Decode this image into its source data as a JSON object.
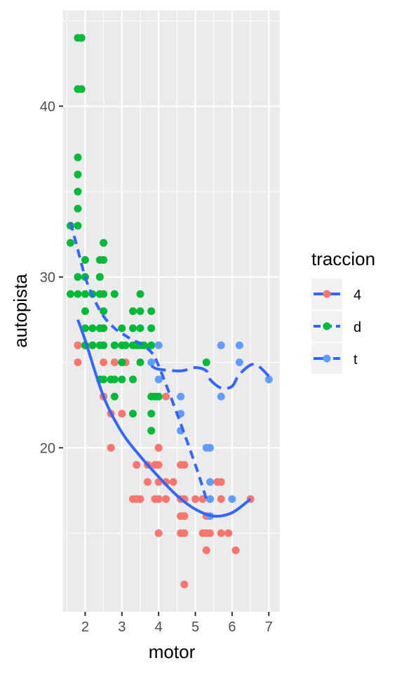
{
  "chart_data": {
    "type": "scatter",
    "xlabel": "motor",
    "ylabel": "autopista",
    "xlim": [
      1.4,
      7.3
    ],
    "ylim": [
      10.4,
      45.6
    ],
    "x_ticks": [
      2,
      3,
      4,
      5,
      6,
      7
    ],
    "y_ticks": [
      20,
      30,
      40
    ],
    "grid": true,
    "legend": {
      "title": "traccion",
      "position": "right"
    },
    "colors": {
      "panel": "#EBEBEB",
      "grid": "#FFFFFF",
      "smooth": "#3366FF",
      "axis_text": "#4D4D4D"
    },
    "series": [
      {
        "name": "4",
        "color": "#F8766D",
        "line_style": "solid",
        "points": [
          [
            1.8,
            26
          ],
          [
            1.8,
            25
          ],
          [
            2.0,
            26
          ],
          [
            2.0,
            26
          ],
          [
            2.2,
            26
          ],
          [
            2.4,
            27
          ],
          [
            2.5,
            27
          ],
          [
            2.5,
            25
          ],
          [
            2.5,
            24
          ],
          [
            2.5,
            23
          ],
          [
            2.7,
            22
          ],
          [
            2.7,
            20
          ],
          [
            2.7,
            20
          ],
          [
            2.8,
            25
          ],
          [
            3.0,
            22
          ],
          [
            3.1,
            25
          ],
          [
            3.3,
            17
          ],
          [
            3.4,
            19
          ],
          [
            3.4,
            17
          ],
          [
            3.5,
            17
          ],
          [
            3.7,
            19
          ],
          [
            3.7,
            18
          ],
          [
            3.9,
            17
          ],
          [
            3.9,
            19
          ],
          [
            4.0,
            20
          ],
          [
            4.0,
            20
          ],
          [
            4.0,
            19
          ],
          [
            4.0,
            18
          ],
          [
            4.0,
            17
          ],
          [
            4.0,
            15
          ],
          [
            4.2,
            23
          ],
          [
            4.2,
            18
          ],
          [
            4.2,
            17
          ],
          [
            4.4,
            18
          ],
          [
            4.6,
            16
          ],
          [
            4.6,
            17
          ],
          [
            4.6,
            19
          ],
          [
            4.6,
            15
          ],
          [
            4.7,
            19
          ],
          [
            4.7,
            16
          ],
          [
            4.7,
            15
          ],
          [
            4.7,
            17
          ],
          [
            4.7,
            12
          ],
          [
            5.0,
            17
          ],
          [
            5.2,
            17
          ],
          [
            5.2,
            15
          ],
          [
            5.3,
            16
          ],
          [
            5.3,
            15
          ],
          [
            5.3,
            14
          ],
          [
            5.4,
            17
          ],
          [
            5.4,
            15
          ],
          [
            5.7,
            18
          ],
          [
            5.7,
            17
          ],
          [
            5.7,
            15
          ],
          [
            5.9,
            15
          ],
          [
            6.1,
            14
          ],
          [
            6.5,
            17
          ],
          [
            5.6,
            18
          ]
        ]
      },
      {
        "name": "d",
        "color": "#00BA38",
        "line_style": "dashed",
        "points": [
          [
            1.6,
            33
          ],
          [
            1.6,
            32
          ],
          [
            1.6,
            29
          ],
          [
            1.8,
            44
          ],
          [
            1.8,
            41
          ],
          [
            1.8,
            37
          ],
          [
            1.8,
            36
          ],
          [
            1.8,
            35
          ],
          [
            1.8,
            34
          ],
          [
            1.8,
            33
          ],
          [
            1.8,
            30
          ],
          [
            1.8,
            29
          ],
          [
            1.9,
            44
          ],
          [
            1.9,
            41
          ],
          [
            2.0,
            31
          ],
          [
            2.0,
            30
          ],
          [
            2.0,
            29
          ],
          [
            2.0,
            28
          ],
          [
            2.0,
            27
          ],
          [
            2.0,
            26
          ],
          [
            2.2,
            29
          ],
          [
            2.2,
            27
          ],
          [
            2.2,
            26
          ],
          [
            2.4,
            31
          ],
          [
            2.4,
            30
          ],
          [
            2.4,
            29
          ],
          [
            2.4,
            27
          ],
          [
            2.4,
            26
          ],
          [
            2.4,
            24
          ],
          [
            2.5,
            32
          ],
          [
            2.5,
            31
          ],
          [
            2.5,
            29
          ],
          [
            2.5,
            28
          ],
          [
            2.5,
            27
          ],
          [
            2.5,
            26
          ],
          [
            2.5,
            24
          ],
          [
            2.7,
            24
          ],
          [
            2.8,
            29
          ],
          [
            2.8,
            26
          ],
          [
            2.8,
            24
          ],
          [
            2.8,
            23
          ],
          [
            3.0,
            27
          ],
          [
            3.0,
            26
          ],
          [
            3.0,
            25
          ],
          [
            3.0,
            24
          ],
          [
            3.1,
            26
          ],
          [
            3.3,
            28
          ],
          [
            3.3,
            27
          ],
          [
            3.3,
            26
          ],
          [
            3.3,
            24
          ],
          [
            3.3,
            22
          ],
          [
            3.4,
            26
          ],
          [
            3.5,
            29
          ],
          [
            3.5,
            28
          ],
          [
            3.5,
            27
          ],
          [
            3.5,
            26
          ],
          [
            3.5,
            25
          ],
          [
            3.6,
            26
          ],
          [
            3.8,
            28
          ],
          [
            3.8,
            27
          ],
          [
            3.8,
            26
          ],
          [
            3.8,
            23
          ],
          [
            3.8,
            22
          ],
          [
            3.8,
            21
          ],
          [
            3.9,
            23
          ],
          [
            4.0,
            23
          ],
          [
            5.3,
            25
          ]
        ]
      },
      {
        "name": "t",
        "color": "#619CFF",
        "line_style": "longdash",
        "points": [
          [
            3.8,
            25
          ],
          [
            4.0,
            26
          ],
          [
            4.0,
            24
          ],
          [
            4.6,
            23
          ],
          [
            4.6,
            22
          ],
          [
            4.6,
            21
          ],
          [
            5.3,
            20
          ],
          [
            5.4,
            20
          ],
          [
            5.4,
            18
          ],
          [
            5.4,
            17
          ],
          [
            5.4,
            16
          ],
          [
            5.7,
            26
          ],
          [
            5.7,
            23
          ],
          [
            6.0,
            17
          ],
          [
            6.2,
            26
          ],
          [
            6.2,
            25
          ],
          [
            7.0,
            24
          ]
        ]
      }
    ],
    "smooth_curves": [
      {
        "name": "4",
        "style": "solid",
        "points": [
          [
            1.8,
            27.5
          ],
          [
            2.0,
            26.3
          ],
          [
            2.5,
            23.0
          ],
          [
            3.0,
            20.9
          ],
          [
            3.5,
            19.5
          ],
          [
            4.0,
            18.3
          ],
          [
            4.5,
            17.2
          ],
          [
            5.0,
            16.4
          ],
          [
            5.5,
            16.0
          ],
          [
            6.0,
            16.2
          ],
          [
            6.5,
            17.0
          ]
        ]
      },
      {
        "name": "d",
        "style": "dashed",
        "points": [
          [
            1.6,
            33.2
          ],
          [
            1.8,
            31.6
          ],
          [
            2.0,
            30.0
          ],
          [
            2.2,
            28.9
          ],
          [
            2.5,
            27.7
          ],
          [
            2.8,
            27.0
          ],
          [
            3.0,
            26.7
          ],
          [
            3.3,
            26.3
          ],
          [
            3.5,
            26.1
          ],
          [
            3.8,
            25.6
          ],
          [
            4.0,
            24.8
          ],
          [
            4.5,
            22.0
          ],
          [
            5.0,
            19.0
          ],
          [
            5.3,
            17.0
          ]
        ]
      },
      {
        "name": "t",
        "style": "longdash",
        "points": [
          [
            3.8,
            24.8
          ],
          [
            4.0,
            24.6
          ],
          [
            4.6,
            24.5
          ],
          [
            5.0,
            24.7
          ],
          [
            5.3,
            24.5
          ],
          [
            5.4,
            24.0
          ],
          [
            5.7,
            23.5
          ],
          [
            6.0,
            23.6
          ],
          [
            6.2,
            24.3
          ],
          [
            6.6,
            24.9
          ],
          [
            7.0,
            24.2
          ]
        ]
      }
    ]
  }
}
